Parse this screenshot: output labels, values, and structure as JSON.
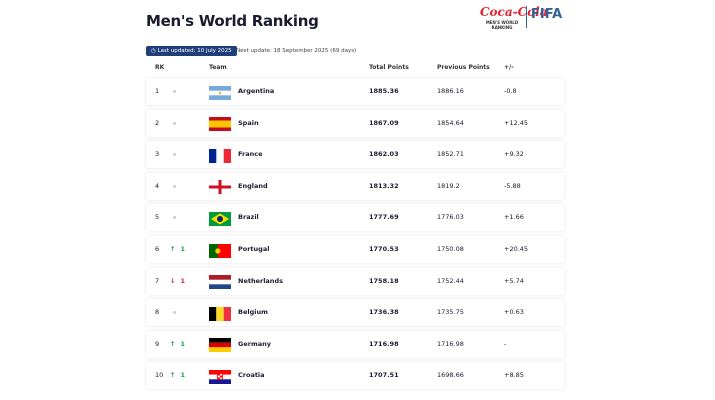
{
  "header": {
    "title": "Men's World Ranking",
    "logo": {
      "sponsor": "Coca-Cola",
      "caption": "MEN'S WORLD RANKING",
      "brand": "FIFA"
    }
  },
  "updates": {
    "last": "Last updated: 10 July 2025",
    "next": "Next update: 18 September 2025 (69 days)"
  },
  "table": {
    "columns": [
      "RK",
      "Team",
      "Total Points",
      "Previous Points",
      "+/-"
    ],
    "rows": [
      {
        "rank": "1",
        "move": null,
        "team": "Argentina",
        "total": "1885.36",
        "previous": "1886.16",
        "diff": "-0.8"
      },
      {
        "rank": "2",
        "move": null,
        "team": "Spain",
        "total": "1867.09",
        "previous": "1854.64",
        "diff": "+12.45"
      },
      {
        "rank": "3",
        "move": null,
        "team": "France",
        "total": "1862.03",
        "previous": "1852.71",
        "diff": "+9.32"
      },
      {
        "rank": "4",
        "move": null,
        "team": "England",
        "total": "1813.32",
        "previous": "1819.2",
        "diff": "-5.88"
      },
      {
        "rank": "5",
        "move": null,
        "team": "Brazil",
        "total": "1777.69",
        "previous": "1776.03",
        "diff": "+1.66"
      },
      {
        "rank": "6",
        "move": {
          "dir": "up",
          "value": "1"
        },
        "team": "Portugal",
        "total": "1770.53",
        "previous": "1750.08",
        "diff": "+20.45"
      },
      {
        "rank": "7",
        "move": {
          "dir": "down",
          "value": "1"
        },
        "team": "Netherlands",
        "total": "1758.18",
        "previous": "1752.44",
        "diff": "+5.74"
      },
      {
        "rank": "8",
        "move": null,
        "team": "Belgium",
        "total": "1736.38",
        "previous": "1735.75",
        "diff": "+0.63"
      },
      {
        "rank": "9",
        "move": {
          "dir": "up",
          "value": "1"
        },
        "team": "Germany",
        "total": "1716.98",
        "previous": "1716.98",
        "diff": "-"
      },
      {
        "rank": "10",
        "move": {
          "dir": "up",
          "value": "1"
        },
        "team": "Croatia",
        "total": "1707.51",
        "previous": "1698.66",
        "diff": "+8.85"
      }
    ]
  }
}
